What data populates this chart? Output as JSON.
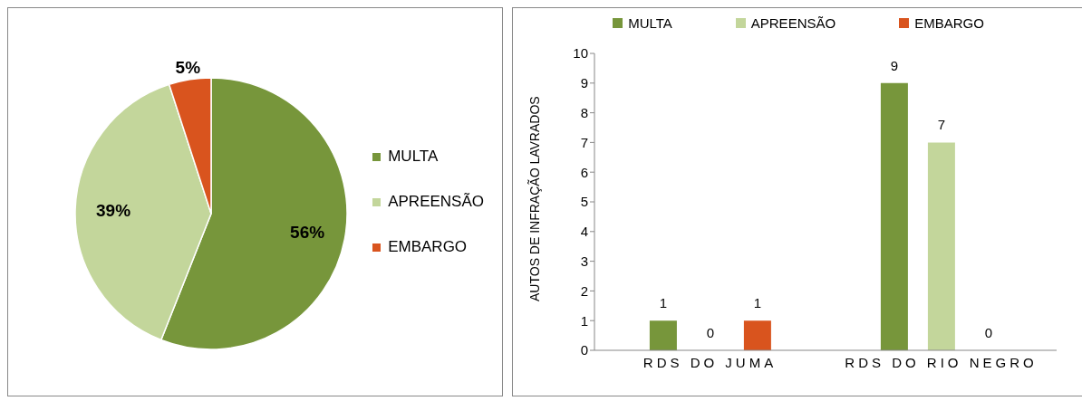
{
  "chart_data": [
    {
      "type": "pie",
      "categories": [
        "MULTA",
        "APREENSÃO",
        "EMBARGO"
      ],
      "values": [
        56,
        39,
        5
      ],
      "value_labels": [
        "56%",
        "39%",
        "5%"
      ],
      "colors": [
        "#77963b",
        "#c3d69b",
        "#d9541e"
      ],
      "legend": "right"
    },
    {
      "type": "bar",
      "categories": [
        "RDS DO JUMA",
        "RDS DO RIO NEGRO"
      ],
      "ylabel": "AUTOS DE INFRAÇÃO LAVRADOS",
      "ylim": [
        0,
        10
      ],
      "yticks": [
        0,
        1,
        2,
        3,
        4,
        5,
        6,
        7,
        8,
        9,
        10
      ],
      "grid": false,
      "legend": "top",
      "data_labels": true,
      "series": [
        {
          "name": "MULTA",
          "color": "#77963b",
          "values": [
            1,
            9
          ]
        },
        {
          "name": "APREENSÃO",
          "color": "#c3d69b",
          "values": [
            0,
            7
          ]
        },
        {
          "name": "EMBARGO",
          "color": "#d9541e",
          "values": [
            1,
            0
          ]
        }
      ]
    }
  ]
}
